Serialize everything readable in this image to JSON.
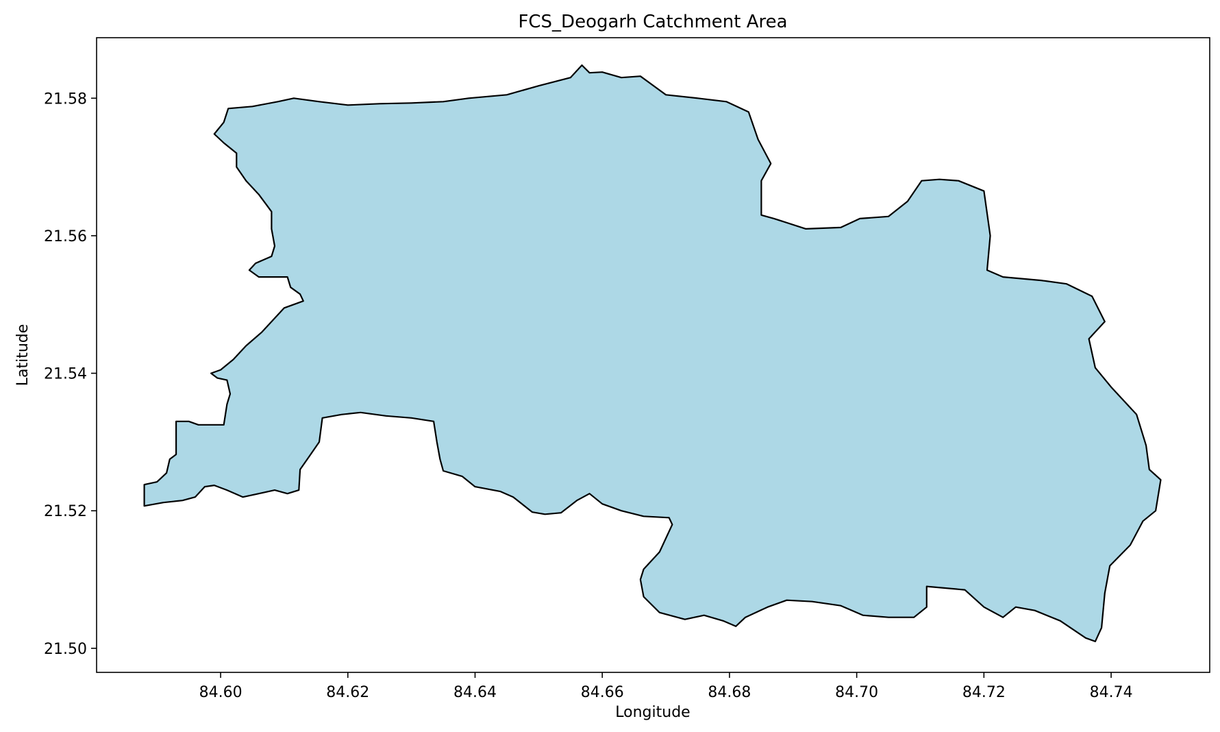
{
  "title": "FCS_Deogarh Catchment Area",
  "xlabel": "Longitude",
  "ylabel": "Latitude",
  "colors": {
    "fill": "#add8e6",
    "edge": "#000000",
    "axes": "#000000",
    "background": "#ffffff"
  },
  "chart_data": {
    "type": "area",
    "title": "FCS_Deogarh Catchment Area",
    "xlabel": "Longitude",
    "ylabel": "Latitude",
    "xlim": [
      84.5805,
      84.7555
    ],
    "ylim": [
      21.4965,
      21.5888
    ],
    "grid": false,
    "x_ticks": [
      84.6,
      84.62,
      84.64,
      84.66,
      84.68,
      84.7,
      84.72,
      84.74
    ],
    "x_tick_labels": [
      "84.60",
      "84.62",
      "84.64",
      "84.66",
      "84.68",
      "84.70",
      "84.72",
      "84.74"
    ],
    "y_ticks": [
      21.5,
      21.52,
      21.54,
      21.56,
      21.58
    ],
    "y_tick_labels": [
      "21.50",
      "21.52",
      "21.54",
      "21.56",
      "21.58"
    ],
    "polygon": [
      [
        84.6005,
        21.5765
      ],
      [
        84.6012,
        21.5785
      ],
      [
        84.605,
        21.5788
      ],
      [
        84.609,
        21.5795
      ],
      [
        84.6115,
        21.58
      ],
      [
        84.6155,
        21.5795
      ],
      [
        84.62,
        21.579
      ],
      [
        84.625,
        21.5792
      ],
      [
        84.63,
        21.5793
      ],
      [
        84.635,
        21.5795
      ],
      [
        84.639,
        21.58
      ],
      [
        84.645,
        21.5805
      ],
      [
        84.65,
        21.5818
      ],
      [
        84.655,
        21.583
      ],
      [
        84.6568,
        21.5848
      ],
      [
        84.658,
        21.5837
      ],
      [
        84.66,
        21.5838
      ],
      [
        84.663,
        21.583
      ],
      [
        84.666,
        21.5832
      ],
      [
        84.67,
        21.5805
      ],
      [
        84.675,
        21.58
      ],
      [
        84.6795,
        21.5795
      ],
      [
        84.683,
        21.578
      ],
      [
        84.6845,
        21.574
      ],
      [
        84.6865,
        21.5705
      ],
      [
        84.685,
        21.568
      ],
      [
        84.685,
        21.563
      ],
      [
        84.687,
        21.5625
      ],
      [
        84.692,
        21.561
      ],
      [
        84.6975,
        21.5612
      ],
      [
        84.7005,
        21.5625
      ],
      [
        84.705,
        21.5628
      ],
      [
        84.708,
        21.565
      ],
      [
        84.7102,
        21.568
      ],
      [
        84.713,
        21.5682
      ],
      [
        84.716,
        21.568
      ],
      [
        84.72,
        21.5665
      ],
      [
        84.721,
        21.56
      ],
      [
        84.7205,
        21.555
      ],
      [
        84.723,
        21.554
      ],
      [
        84.729,
        21.5535
      ],
      [
        84.733,
        21.553
      ],
      [
        84.737,
        21.5512
      ],
      [
        84.739,
        21.5475
      ],
      [
        84.7365,
        21.545
      ],
      [
        84.7375,
        21.5408
      ],
      [
        84.74,
        21.538
      ],
      [
        84.744,
        21.534
      ],
      [
        84.7455,
        21.5295
      ],
      [
        84.746,
        21.526
      ],
      [
        84.7478,
        21.5245
      ],
      [
        84.747,
        21.52
      ],
      [
        84.745,
        21.5185
      ],
      [
        84.743,
        21.515
      ],
      [
        84.7398,
        21.512
      ],
      [
        84.739,
        21.508
      ],
      [
        84.7385,
        21.503
      ],
      [
        84.7375,
        21.501
      ],
      [
        84.736,
        21.5015
      ],
      [
        84.732,
        21.504
      ],
      [
        84.728,
        21.5055
      ],
      [
        84.725,
        21.506
      ],
      [
        84.723,
        21.5045
      ],
      [
        84.72,
        21.506
      ],
      [
        84.717,
        21.5085
      ],
      [
        84.711,
        21.509
      ],
      [
        84.711,
        21.506
      ],
      [
        84.709,
        21.5045
      ],
      [
        84.705,
        21.5045
      ],
      [
        84.701,
        21.5048
      ],
      [
        84.6975,
        21.5062
      ],
      [
        84.693,
        21.5068
      ],
      [
        84.689,
        21.507
      ],
      [
        84.686,
        21.506
      ],
      [
        84.6825,
        21.5045
      ],
      [
        84.681,
        21.5032
      ],
      [
        84.679,
        21.504
      ],
      [
        84.676,
        21.5048
      ],
      [
        84.673,
        21.5042
      ],
      [
        84.669,
        21.5052
      ],
      [
        84.6665,
        21.5075
      ],
      [
        84.666,
        21.51
      ],
      [
        84.6665,
        21.5115
      ],
      [
        84.669,
        21.514
      ],
      [
        84.671,
        21.518
      ],
      [
        84.6705,
        21.519
      ],
      [
        84.6665,
        21.5192
      ],
      [
        84.663,
        21.52
      ],
      [
        84.66,
        21.521
      ],
      [
        84.658,
        21.5225
      ],
      [
        84.656,
        21.5215
      ],
      [
        84.6535,
        21.5197
      ],
      [
        84.651,
        21.5195
      ],
      [
        84.649,
        21.5198
      ],
      [
        84.646,
        21.522
      ],
      [
        84.644,
        21.5228
      ],
      [
        84.64,
        21.5235
      ],
      [
        84.638,
        21.525
      ],
      [
        84.635,
        21.5258
      ],
      [
        84.6345,
        21.5275
      ],
      [
        84.634,
        21.53
      ],
      [
        84.6335,
        21.533
      ],
      [
        84.63,
        21.5335
      ],
      [
        84.626,
        21.5338
      ],
      [
        84.622,
        21.5343
      ],
      [
        84.619,
        21.534
      ],
      [
        84.616,
        21.5335
      ],
      [
        84.6155,
        21.53
      ],
      [
        84.614,
        21.528
      ],
      [
        84.6125,
        21.526
      ],
      [
        84.6123,
        21.523
      ],
      [
        84.6105,
        21.5225
      ],
      [
        84.6085,
        21.523
      ],
      [
        84.606,
        21.5225
      ],
      [
        84.6035,
        21.522
      ],
      [
        84.601,
        21.523
      ],
      [
        84.599,
        21.5237
      ],
      [
        84.5975,
        21.5235
      ],
      [
        84.596,
        21.522
      ],
      [
        84.594,
        21.5215
      ],
      [
        84.591,
        21.5212
      ],
      [
        84.588,
        21.5207
      ],
      [
        84.588,
        21.5238
      ],
      [
        84.59,
        21.5242
      ],
      [
        84.5915,
        21.5255
      ],
      [
        84.592,
        21.5275
      ],
      [
        84.593,
        21.5282
      ],
      [
        84.593,
        21.533
      ],
      [
        84.595,
        21.533
      ],
      [
        84.5965,
        21.5325
      ],
      [
        84.6005,
        21.5325
      ],
      [
        84.601,
        21.5355
      ],
      [
        84.6015,
        21.537
      ],
      [
        84.601,
        21.539
      ],
      [
        84.5995,
        21.5393
      ],
      [
        84.5985,
        21.54
      ],
      [
        84.6,
        21.5405
      ],
      [
        84.602,
        21.542
      ],
      [
        84.604,
        21.544
      ],
      [
        84.6065,
        21.546
      ],
      [
        84.608,
        21.5475
      ],
      [
        84.61,
        21.5495
      ],
      [
        84.613,
        21.5505
      ],
      [
        84.6125,
        21.5515
      ],
      [
        84.611,
        21.5525
      ],
      [
        84.6105,
        21.554
      ],
      [
        84.606,
        21.554
      ],
      [
        84.6045,
        21.555
      ],
      [
        84.6055,
        21.556
      ],
      [
        84.608,
        21.557
      ],
      [
        84.6085,
        21.5585
      ],
      [
        84.608,
        21.561
      ],
      [
        84.608,
        21.5635
      ],
      [
        84.606,
        21.566
      ],
      [
        84.604,
        21.568
      ],
      [
        84.6025,
        21.57
      ],
      [
        84.6025,
        21.572
      ],
      [
        84.6005,
        21.5735
      ],
      [
        84.599,
        21.5748
      ],
      [
        84.6005,
        21.5765
      ]
    ]
  }
}
